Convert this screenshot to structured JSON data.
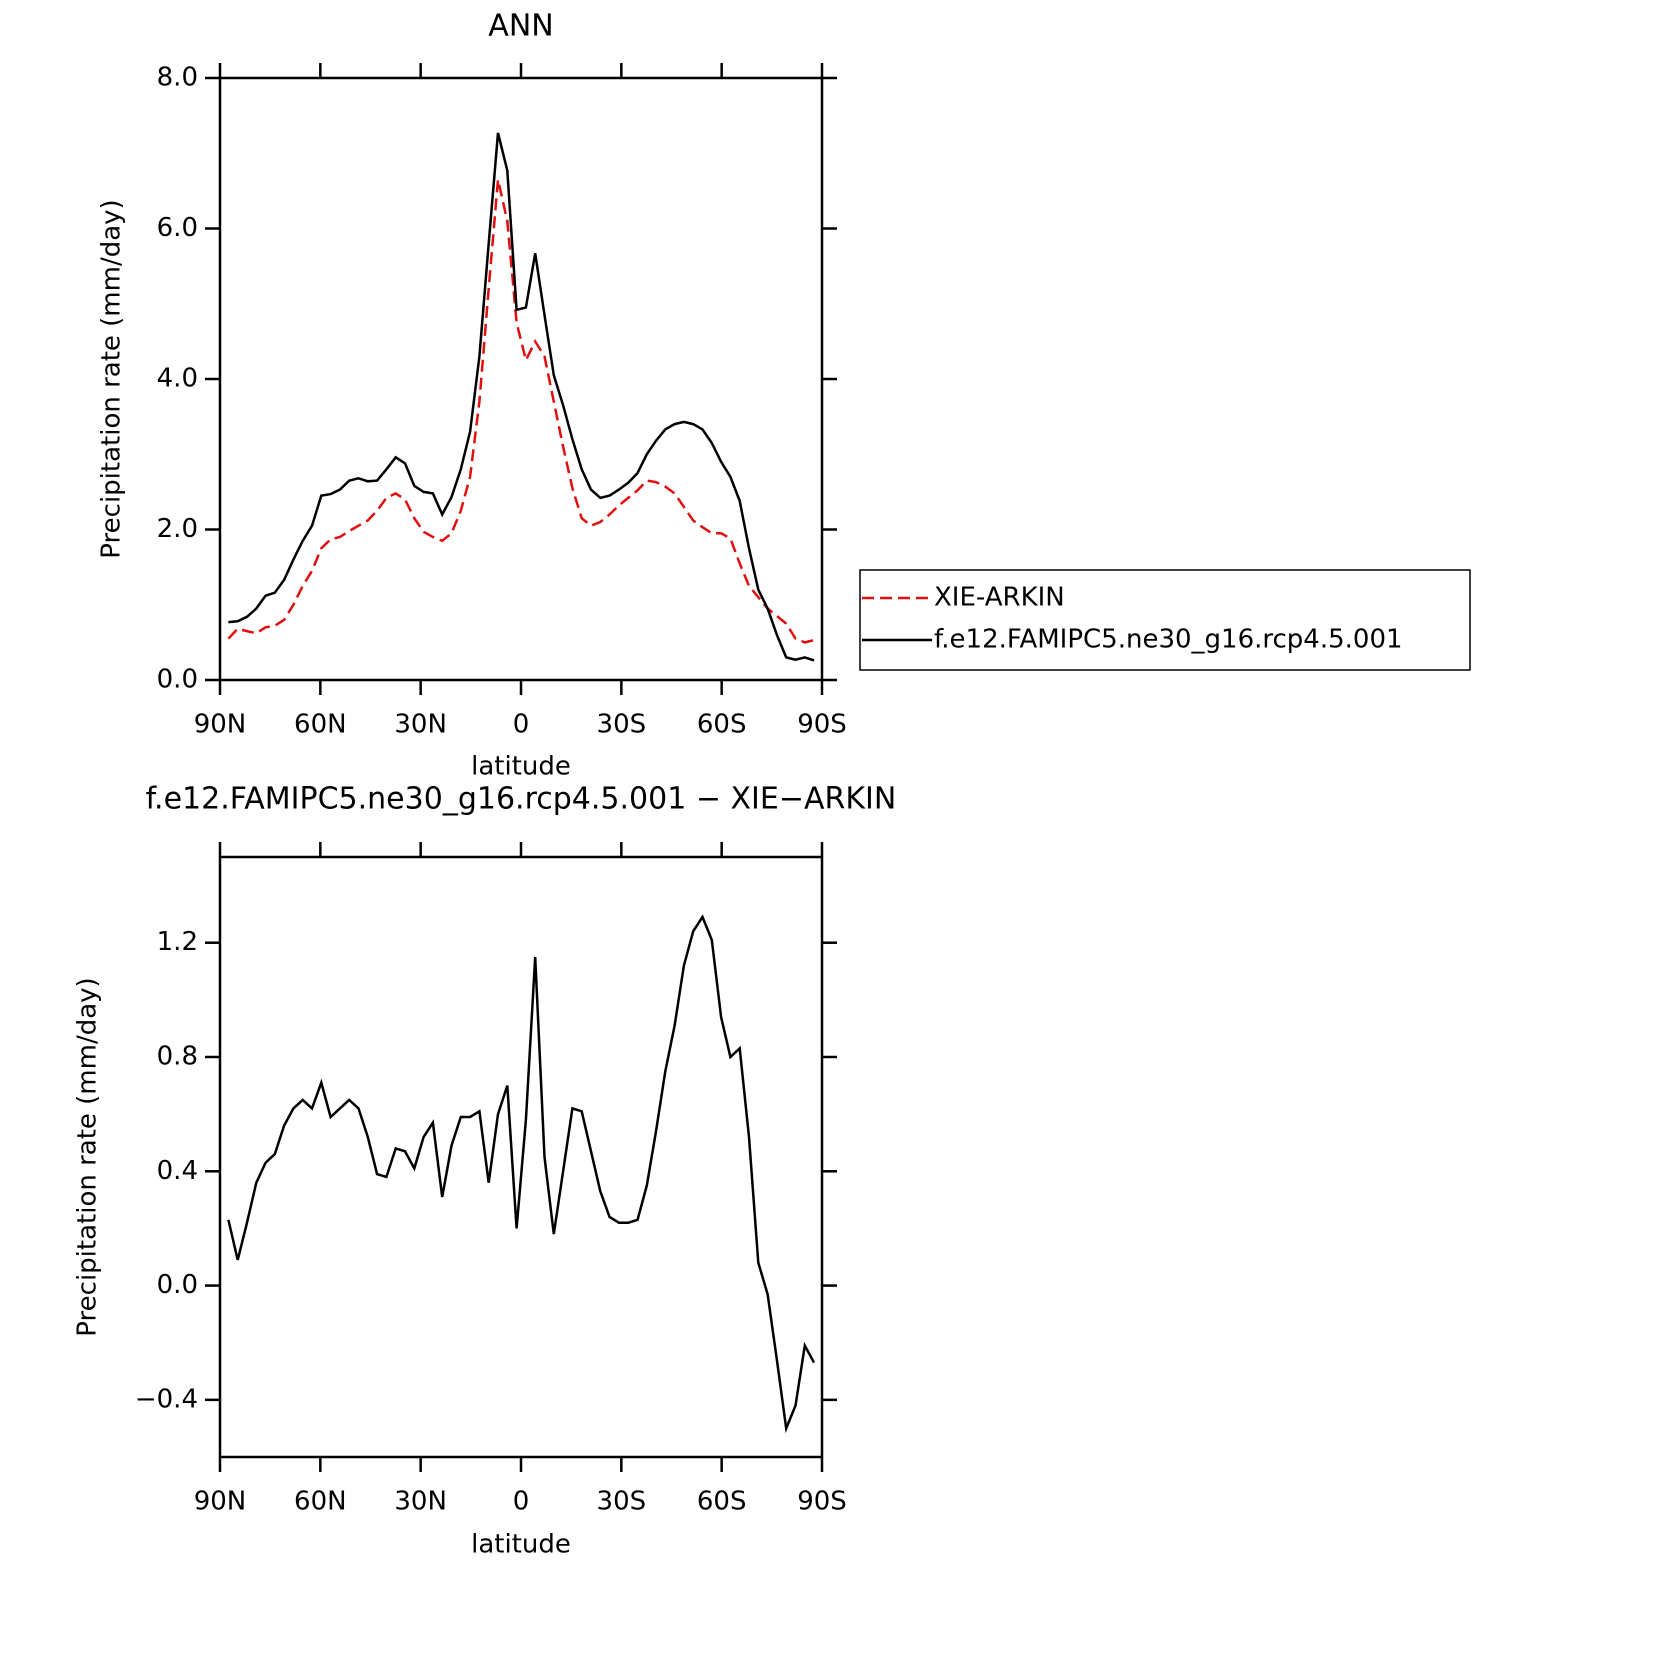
{
  "chart_data": [
    {
      "type": "line",
      "title": "ANN",
      "x_label": "latitude",
      "y_label": "Precipitation rate (mm/day)",
      "x": [
        87.5,
        84.72,
        81.94,
        79.16,
        76.38,
        73.6,
        70.82,
        68.04,
        65.26,
        62.48,
        59.7,
        56.92,
        54.14,
        51.36,
        48.58,
        45.8,
        43.02,
        40.24,
        37.46,
        34.68,
        31.9,
        29.12,
        26.34,
        23.56,
        20.78,
        18,
        15.22,
        12.44,
        9.66,
        6.88,
        4.1,
        1.32,
        -1.46,
        -4.24,
        -7.02,
        -9.8,
        -12.58,
        -15.36,
        -18.14,
        -20.92,
        -23.7,
        -26.48,
        -29.26,
        -32.04,
        -34.82,
        -37.6,
        -40.38,
        -43.16,
        -45.94,
        -48.72,
        -51.5,
        -54.28,
        -57.06,
        -59.84,
        -62.62,
        -65.4,
        -68.18,
        -70.96,
        -73.74,
        -76.52,
        -79.3,
        -82.08,
        -84.86,
        -87.64
      ],
      "series": [
        {
          "name": "XIE-ARKIN",
          "color": "#e01010",
          "linestyle": "dashed",
          "values": [
            0.55,
            0.68,
            0.65,
            0.62,
            0.7,
            0.72,
            0.8,
            1.0,
            1.25,
            1.45,
            1.75,
            1.87,
            1.9,
            1.98,
            2.05,
            2.12,
            2.25,
            2.42,
            2.48,
            2.4,
            2.15,
            1.97,
            1.9,
            1.85,
            1.95,
            2.25,
            2.7,
            3.7,
            5.2,
            6.65,
            6.1,
            4.75,
            4.25,
            4.5,
            4.3,
            3.7,
            3.1,
            2.55,
            2.15,
            2.05,
            2.1,
            2.2,
            2.32,
            2.42,
            2.52,
            2.65,
            2.63,
            2.57,
            2.48,
            2.3,
            2.12,
            2.03,
            1.95,
            1.95,
            1.88,
            1.55,
            1.25,
            1.1,
            0.95,
            0.85,
            0.75,
            0.55,
            0.5,
            0.53
          ]
        },
        {
          "name": "f.e12.FAMIPC5.ne30_g16.rcp4.5.001",
          "color": "#000000",
          "linestyle": "solid",
          "values": [
            0.77,
            0.78,
            0.84,
            0.95,
            1.12,
            1.16,
            1.33,
            1.6,
            1.85,
            2.05,
            2.45,
            2.47,
            2.53,
            2.65,
            2.68,
            2.64,
            2.65,
            2.8,
            2.96,
            2.88,
            2.58,
            2.5,
            2.48,
            2.2,
            2.43,
            2.8,
            3.3,
            4.3,
            5.8,
            7.27,
            6.77,
            4.92,
            4.95,
            5.67,
            4.85,
            4.05,
            3.65,
            3.2,
            2.8,
            2.53,
            2.42,
            2.45,
            2.53,
            2.62,
            2.75,
            3.0,
            3.18,
            3.33,
            3.4,
            3.43,
            3.4,
            3.33,
            3.15,
            2.9,
            2.7,
            2.38,
            1.75,
            1.2,
            0.95,
            0.6,
            0.3,
            0.27,
            0.3,
            0.26
          ]
        }
      ],
      "xlim": [
        90,
        -90
      ],
      "xticks": [
        {
          "value": 90,
          "label": "90N"
        },
        {
          "value": 60,
          "label": "60N"
        },
        {
          "value": 30,
          "label": "30N"
        },
        0,
        {
          "value": -30,
          "label": "30S"
        },
        {
          "value": -60,
          "label": "60S"
        },
        {
          "value": -90,
          "label": "90S"
        }
      ],
      "ylim": [
        0,
        8
      ],
      "yticks": [
        {
          "value": 0,
          "label": "0.0"
        },
        {
          "value": 2,
          "label": "2.0"
        },
        {
          "value": 4,
          "label": "4.0"
        },
        {
          "value": 6,
          "label": "6.0"
        },
        {
          "value": 8,
          "label": "8.0"
        }
      ],
      "legend": "right"
    },
    {
      "type": "line",
      "title": "f.e12.FAMIPC5.ne30_g16.rcp4.5.001 − XIE−ARKIN",
      "x_label": "latitude",
      "y_label": "Precipitation rate (mm/day)",
      "x": [
        87.5,
        84.72,
        81.94,
        79.16,
        76.38,
        73.6,
        70.82,
        68.04,
        65.26,
        62.48,
        59.7,
        56.92,
        54.14,
        51.36,
        48.58,
        45.8,
        43.02,
        40.24,
        37.46,
        34.68,
        31.9,
        29.12,
        26.34,
        23.56,
        20.78,
        18,
        15.22,
        12.44,
        9.66,
        6.88,
        4.1,
        1.32,
        -1.46,
        -4.24,
        -7.02,
        -9.8,
        -12.58,
        -15.36,
        -18.14,
        -20.92,
        -23.7,
        -26.48,
        -29.26,
        -32.04,
        -34.82,
        -37.6,
        -40.38,
        -43.16,
        -45.94,
        -48.72,
        -51.5,
        -54.28,
        -57.06,
        -59.84,
        -62.62,
        -65.4,
        -68.18,
        -70.96,
        -73.74,
        -76.52,
        -79.3,
        -82.08,
        -84.86,
        -87.64
      ],
      "values": [
        0.23,
        0.09,
        0.22,
        0.36,
        0.43,
        0.46,
        0.56,
        0.62,
        0.65,
        0.62,
        0.71,
        0.59,
        0.62,
        0.65,
        0.62,
        0.52,
        0.39,
        0.38,
        0.48,
        0.47,
        0.41,
        0.52,
        0.57,
        0.31,
        0.49,
        0.59,
        0.59,
        0.61,
        0.36,
        0.6,
        0.7,
        0.2,
        0.58,
        1.15,
        0.45,
        0.18,
        0.4,
        0.62,
        0.61,
        0.47,
        0.33,
        0.24,
        0.22,
        0.22,
        0.23,
        0.35,
        0.54,
        0.75,
        0.91,
        1.12,
        1.24,
        1.29,
        1.21,
        0.94,
        0.8,
        0.83,
        0.52,
        0.08,
        -0.03,
        -0.26,
        -0.5,
        -0.42,
        -0.21,
        -0.27
      ],
      "color": "#000000",
      "xlim": [
        90,
        -90
      ],
      "xticks": [
        {
          "value": 90,
          "label": "90N"
        },
        {
          "value": 60,
          "label": "60N"
        },
        {
          "value": 30,
          "label": "30N"
        },
        0,
        {
          "value": -30,
          "label": "30S"
        },
        {
          "value": -60,
          "label": "60S"
        },
        {
          "value": -90,
          "label": "90S"
        }
      ],
      "ylim": [
        -0.6,
        1.5
      ],
      "yticks": [
        {
          "value": -0.4,
          "label": "−0.4"
        },
        {
          "value": 0,
          "label": "0.0"
        },
        {
          "value": 0.4,
          "label": "0.4"
        },
        {
          "value": 0.8,
          "label": "0.8"
        },
        {
          "value": 1.2,
          "label": "1.2"
        }
      ]
    }
  ]
}
